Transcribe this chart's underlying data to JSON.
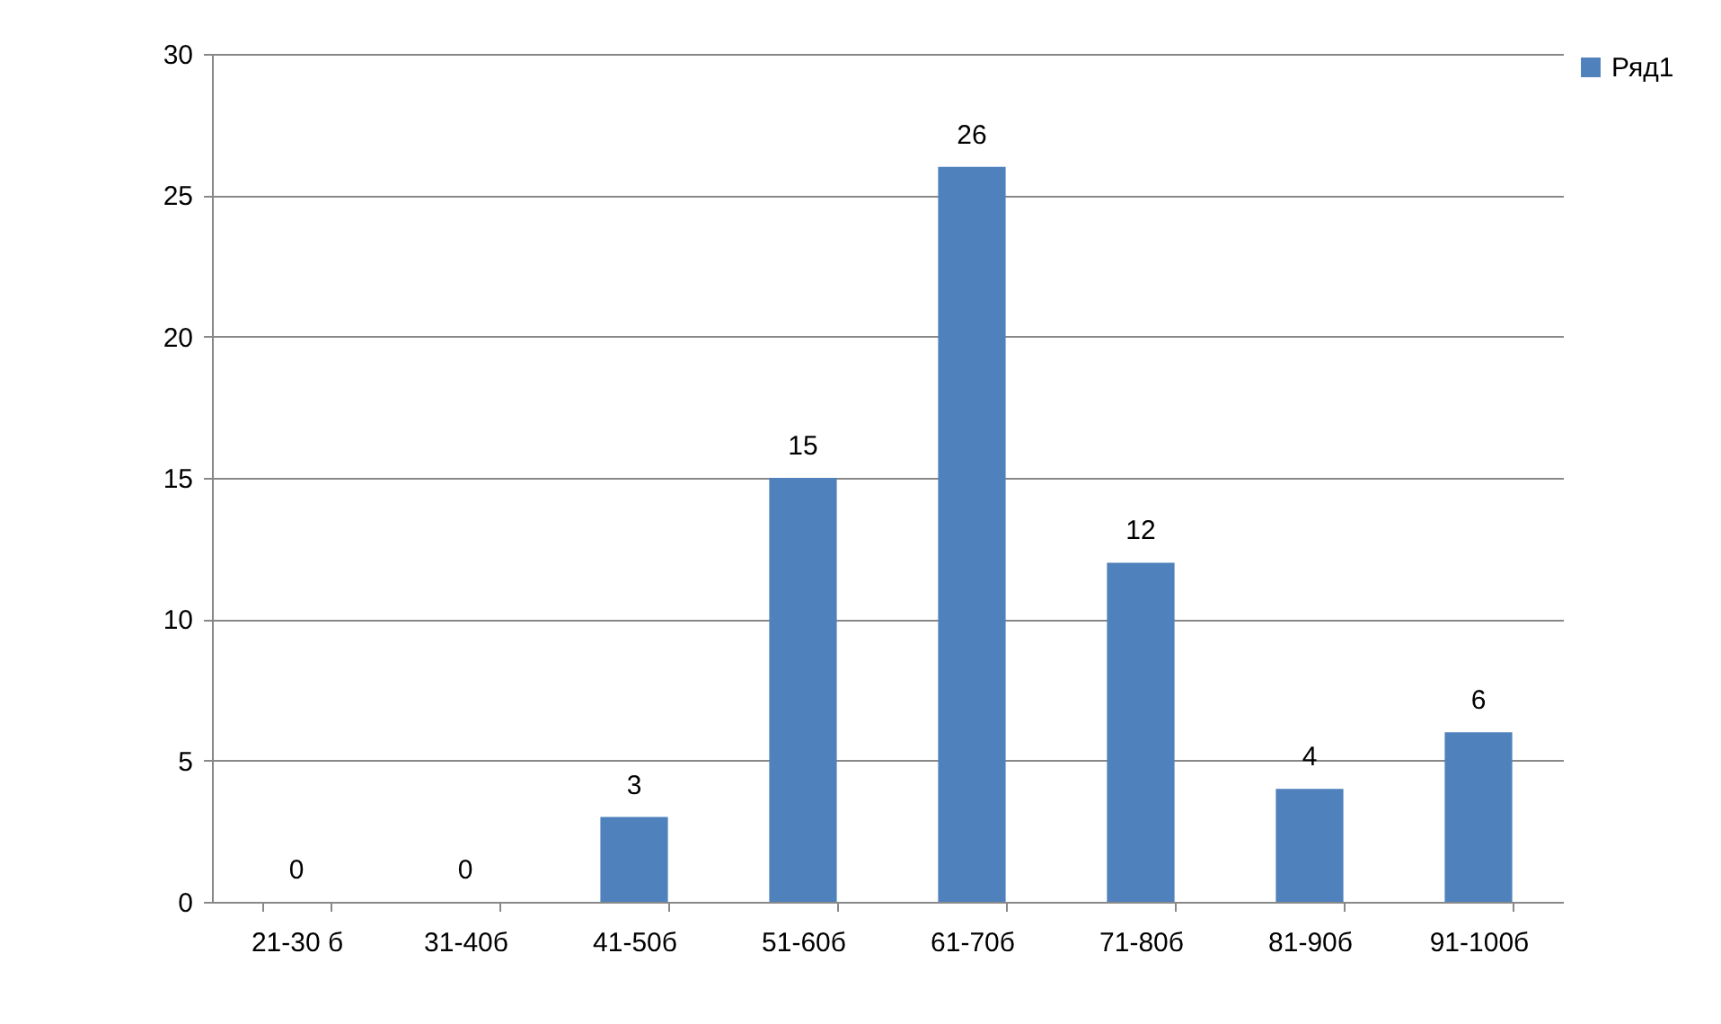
{
  "chart_data": {
    "type": "bar",
    "categories": [
      "21-30 б",
      "31-40б",
      "41-50б",
      "51-60б",
      "61-70б",
      "71-80б",
      "81-90б",
      "91-100б"
    ],
    "series": [
      {
        "name": "Ряд1",
        "color": "#4f81bd",
        "values": [
          0,
          0,
          3,
          15,
          26,
          12,
          4,
          6
        ]
      }
    ],
    "ylim": [
      0,
      30
    ],
    "yticks": [
      0,
      5,
      10,
      15,
      20,
      25,
      30
    ],
    "grid": "y",
    "legend": "right",
    "data_labels": true
  }
}
